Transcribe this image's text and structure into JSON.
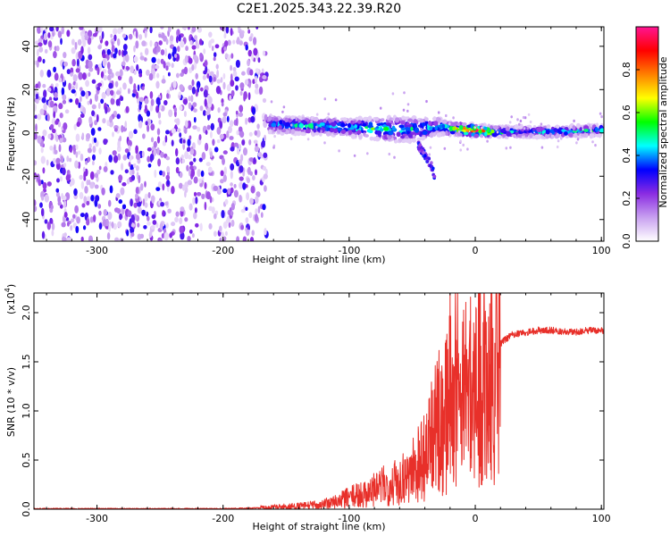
{
  "chart_data": [
    {
      "type": "heatmap",
      "title": "C2E1.2025.343.22.39.R20",
      "xlabel": "Height of straight line (km)",
      "ylabel": "Frequency (Hz)",
      "xlim": [
        -350,
        102
      ],
      "ylim": [
        -50,
        49
      ],
      "xticks": [
        -300,
        -200,
        -100,
        0,
        100
      ],
      "yticks": [
        -40,
        -20,
        0,
        20,
        40
      ],
      "colorbar": {
        "label": "Normalized spectral amplitude",
        "range": [
          0,
          1
        ],
        "ticks": [
          "0.0",
          "0.2",
          "0.4",
          "0.6",
          "0.8"
        ],
        "colormap": [
          "#ffffff",
          "#c8a0f0",
          "#8a2be2",
          "#0000ff",
          "#00ffff",
          "#00ff00",
          "#ffff00",
          "#ff8000",
          "#ff0000",
          "#ff1493"
        ]
      },
      "regions": [
        {
          "label": "noise",
          "x_range": [
            -350,
            -165
          ],
          "freq_range": [
            -50,
            49
          ],
          "amplitude": 0.1
        },
        {
          "label": "signal",
          "x_range": [
            -165,
            102
          ],
          "center_freq": 0,
          "amplitude": 0.5
        }
      ],
      "signal_track": {
        "x": [
          -165,
          -140,
          -120,
          -100,
          -80,
          -60,
          -40,
          -30,
          -20,
          -10,
          0,
          20,
          40,
          60,
          80,
          100
        ],
        "freq": [
          4,
          3.5,
          3,
          2.5,
          2,
          1.5,
          2,
          3,
          2,
          1.5,
          1,
          0.5,
          0.5,
          0.5,
          0.8,
          1.2
        ],
        "width": [
          4,
          4,
          4,
          4,
          5,
          6,
          5,
          4,
          3,
          3,
          3,
          2.5,
          2.5,
          2.5,
          2.5,
          2.5
        ],
        "peak": [
          0.4,
          0.45,
          0.5,
          0.45,
          0.55,
          0.5,
          0.5,
          0.45,
          0.6,
          0.85,
          0.95,
          0.45,
          0.45,
          0.45,
          0.45,
          0.5
        ]
      },
      "branch": {
        "x": [
          -45,
          -40,
          -35,
          -32
        ],
        "freq": [
          -6,
          -10,
          -15,
          -20
        ]
      }
    },
    {
      "type": "line",
      "xlabel": "Height of straight line (km)",
      "ylabel": "SNR (10 * v/v)",
      "multiplier_label": "(x10",
      "multiplier_exponent": "4",
      "xlim": [
        -350,
        102
      ],
      "ylim": [
        0,
        2.2
      ],
      "xticks": [
        -300,
        -200,
        -100,
        0,
        100
      ],
      "yticks": [
        "0.0",
        "0.5",
        "1.0",
        "1.5",
        "2.0"
      ],
      "color": "#e8302a",
      "series": [
        {
          "x": [
            -350,
            -300,
            -250,
            -200,
            -180,
            -160,
            -140,
            -120,
            -110,
            -100,
            -90,
            -80,
            -70,
            -60,
            -50,
            -40,
            -30,
            -25,
            -20,
            -15,
            -10,
            -5,
            0,
            5,
            10,
            15,
            20,
            25,
            30,
            40,
            50,
            60,
            70,
            80,
            90,
            100
          ],
          "y": [
            0.005,
            0.005,
            0.005,
            0.005,
            0.01,
            0.02,
            0.03,
            0.05,
            0.08,
            0.12,
            0.15,
            0.2,
            0.25,
            0.3,
            0.4,
            0.55,
            0.85,
            0.95,
            1.2,
            1.25,
            1.2,
            1.15,
            1.2,
            1.3,
            1.45,
            1.6,
            1.68,
            1.74,
            1.78,
            1.8,
            1.82,
            1.82,
            1.81,
            1.8,
            1.82,
            1.82
          ]
        }
      ]
    }
  ]
}
